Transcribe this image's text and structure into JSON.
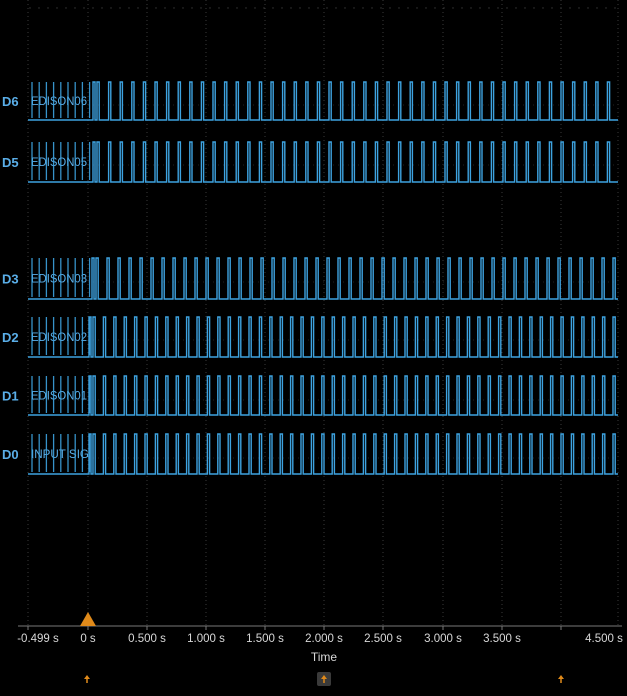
{
  "colors": {
    "background": "#000000",
    "trace": "#3ea3e0",
    "grid": "#3a3a3a",
    "label": "#5aaee8",
    "axis_text": "#d8d8d8",
    "trigger": "#e08a1a"
  },
  "channels": [
    {
      "id": "D6",
      "name": "EDISON06"
    },
    {
      "id": "D5",
      "name": "EDISON05"
    },
    {
      "id": "D3",
      "name": "EDISON03"
    },
    {
      "id": "D2",
      "name": "EDISON02"
    },
    {
      "id": "D1",
      "name": "EDISON01"
    },
    {
      "id": "D0",
      "name": "INPUT SIG"
    }
  ],
  "time_axis": {
    "title": "Time",
    "ticks": [
      "-0.499 s",
      "0 s",
      "0.500 s",
      "1.000 s",
      "1.500 s",
      "2.000 s",
      "2.500 s",
      "3.000 s",
      "3.500 s",
      "4.500 s"
    ],
    "range_s": [
      -0.499,
      4.5
    ]
  },
  "markers": {
    "trigger_icon": "trigger-triangle",
    "position_icons": [
      "up-arrow",
      "up-arrow-boxed",
      "up-arrow"
    ]
  }
}
